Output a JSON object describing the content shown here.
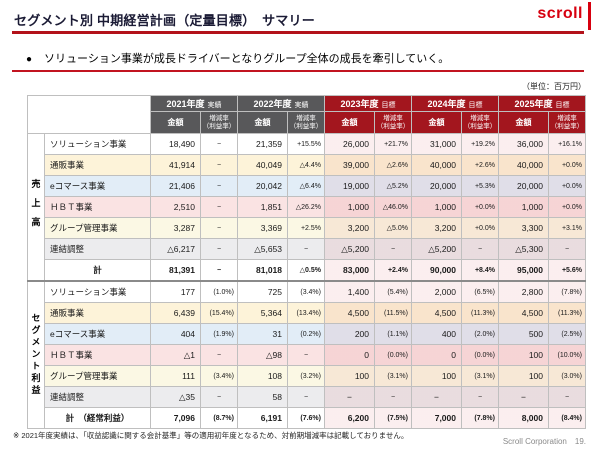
{
  "page": {
    "title": "セグメント別 中期経営計画（定量目標）　サマリー",
    "logo": "scroll",
    "bullet": "ソリューション事業が成長ドライバーとなりグループ全体の成長を牽引していく。",
    "unit_note": "（単位：百万円）",
    "footnote": "※ 2021年度実績は、「収益認識に関する会計基準」等の適用初年度となるため、対前期増減率は記載しておりません。",
    "footer_company": "Scroll Corporation",
    "footer_page": "19."
  },
  "colors": {
    "brand_red": "#D7000F",
    "actual_header_gray": "#58585A",
    "target_header_red": "#A3161E",
    "title_rule_red": "#B3121A",
    "row_yellow": "#FDF3D9",
    "row_blue": "#E2EDF7",
    "row_pink": "#FAE3E3",
    "row_cream": "#FBF8E4",
    "row_gray": "#ECECEE"
  },
  "table": {
    "year_headers": [
      {
        "label": "2021年度",
        "suffix": "実績",
        "type": "actual"
      },
      {
        "label": "2022年度",
        "suffix": "実績",
        "type": "actual"
      },
      {
        "label": "2023年度",
        "suffix": "目標",
        "type": "target"
      },
      {
        "label": "2024年度",
        "suffix": "目標",
        "type": "target"
      },
      {
        "label": "2025年度",
        "suffix": "目標",
        "type": "target"
      }
    ],
    "sub_headers": {
      "amount": "金額",
      "rate_line1": "増減率",
      "rate_line2": "（利益率）"
    },
    "sections": [
      {
        "group_label": "売上高",
        "rows": [
          {
            "label": "ソリューション事業",
            "tone": "white",
            "cells": [
              "18,490",
              "−",
              "21,359",
              "+15.5%",
              "26,000",
              "+21.7%",
              "31,000",
              "+19.2%",
              "36,000",
              "+16.1%"
            ]
          },
          {
            "label": "通販事業",
            "tone": "yellow",
            "cells": [
              "41,914",
              "−",
              "40,049",
              "△4.4%",
              "39,000",
              "△2.6%",
              "40,000",
              "+2.6%",
              "40,000",
              "+0.0%"
            ]
          },
          {
            "label": "eコマース事業",
            "tone": "blue",
            "cells": [
              "21,406",
              "−",
              "20,042",
              "△6.4%",
              "19,000",
              "△5.2%",
              "20,000",
              "+5.3%",
              "20,000",
              "+0.0%"
            ]
          },
          {
            "label": "ＨＢＴ事業",
            "tone": "pink",
            "cells": [
              "2,510",
              "−",
              "1,851",
              "△26.2%",
              "1,000",
              "△46.0%",
              "1,000",
              "+0.0%",
              "1,000",
              "+0.0%"
            ]
          },
          {
            "label": "グループ管理事業",
            "tone": "cream",
            "cells": [
              "3,287",
              "−",
              "3,369",
              "+2.5%",
              "3,200",
              "△5.0%",
              "3,200",
              "+0.0%",
              "3,300",
              "+3.1%"
            ]
          },
          {
            "label": "連結調整",
            "tone": "gray",
            "cells": [
              "△6,217",
              "−",
              "△5,653",
              "−",
              "△5,200",
              "−",
              "△5,200",
              "−",
              "△5,300",
              "−"
            ]
          },
          {
            "label": "計",
            "tone": "total",
            "cells": [
              "81,391",
              "−",
              "81,018",
              "△0.5%",
              "83,000",
              "+2.4%",
              "90,000",
              "+8.4%",
              "95,000",
              "+5.6%"
            ]
          }
        ]
      },
      {
        "group_label": "セグメント利益",
        "rows": [
          {
            "label": "ソリューション事業",
            "tone": "white",
            "cells": [
              "177",
              "(1.0%)",
              "725",
              "(3.4%)",
              "1,400",
              "(5.4%)",
              "2,000",
              "(6.5%)",
              "2,800",
              "(7.8%)"
            ]
          },
          {
            "label": "通販事業",
            "tone": "yellow",
            "cells": [
              "6,439",
              "(15.4%)",
              "5,364",
              "(13.4%)",
              "4,500",
              "(11.5%)",
              "4,500",
              "(11.3%)",
              "4,500",
              "(11.3%)"
            ]
          },
          {
            "label": "eコマース事業",
            "tone": "blue",
            "cells": [
              "404",
              "(1.9%)",
              "31",
              "(0.2%)",
              "200",
              "(1.1%)",
              "400",
              "(2.0%)",
              "500",
              "(2.5%)"
            ]
          },
          {
            "label": "ＨＢＴ事業",
            "tone": "pink",
            "cells": [
              "△1",
              "−",
              "△98",
              "−",
              "0",
              "(0.0%)",
              "0",
              "(0.0%)",
              "100",
              "(10.0%)"
            ]
          },
          {
            "label": "グループ管理事業",
            "tone": "cream",
            "cells": [
              "111",
              "(3.4%)",
              "108",
              "(3.2%)",
              "100",
              "(3.1%)",
              "100",
              "(3.1%)",
              "100",
              "(3.0%)"
            ]
          },
          {
            "label": "連結調整",
            "tone": "gray",
            "cells": [
              "△35",
              "−",
              "58",
              "−",
              "−",
              "−",
              "−",
              "−",
              "−",
              "−"
            ]
          },
          {
            "label": "計　（経常利益）",
            "tone": "total",
            "cells": [
              "7,096",
              "(8.7%)",
              "6,191",
              "(7.6%)",
              "6,200",
              "(7.5%)",
              "7,000",
              "(7.8%)",
              "8,000",
              "(8.4%)"
            ]
          }
        ]
      }
    ]
  }
}
